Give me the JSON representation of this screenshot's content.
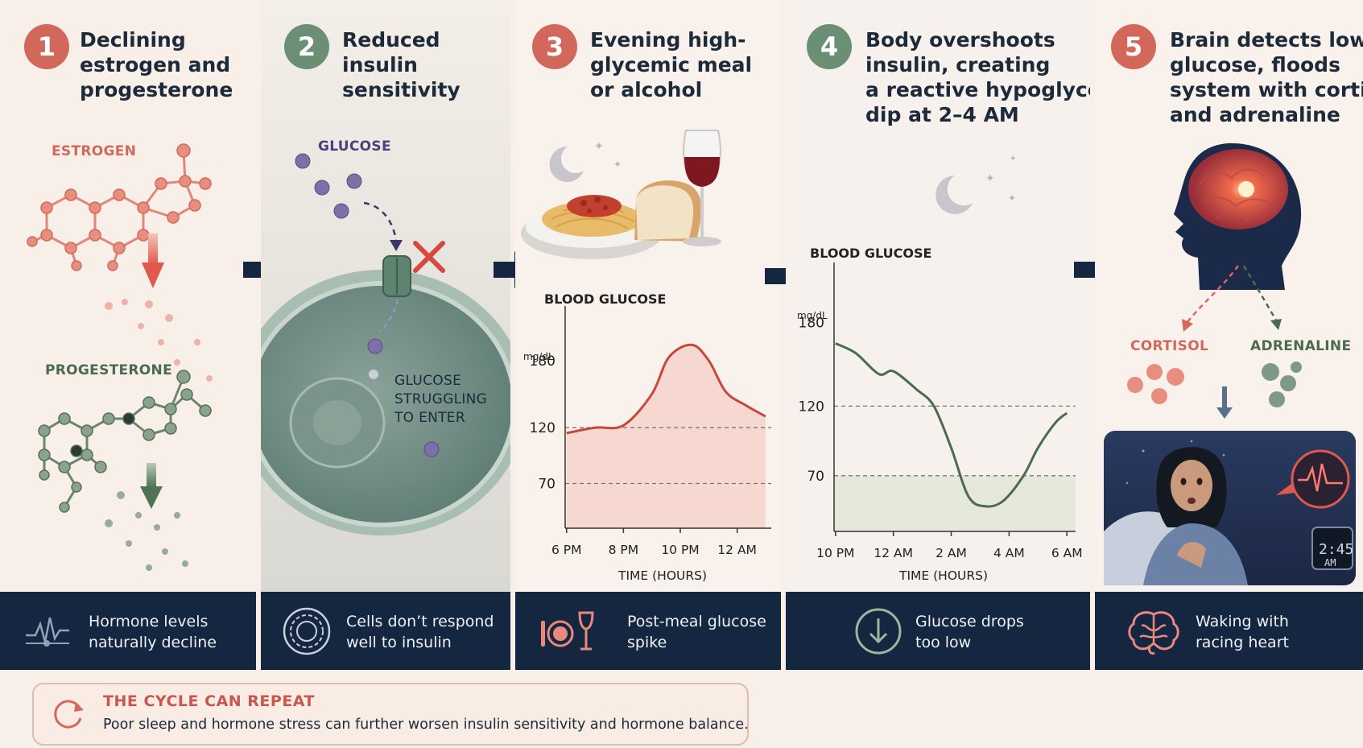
{
  "colors": {
    "navy": "#152641",
    "coral": "#d9665a",
    "sage": "#6b8f74",
    "cream": "#f7efe8"
  },
  "steps": [
    {
      "number": "1",
      "title_lines": [
        "Declining",
        "estrogen and",
        "progesterone"
      ],
      "footer_lines": [
        "Hormone levels",
        "naturally decline"
      ],
      "icon": "pulse-line-icon"
    },
    {
      "number": "2",
      "title_lines": [
        "Reduced",
        "insulin",
        "sensitivity"
      ],
      "footer_lines": [
        "Cells don’t respond",
        "well to insulin"
      ],
      "icon": "cell-rings-icon"
    },
    {
      "number": "3",
      "title_lines": [
        "Evening high-",
        "glycemic meal",
        "or alcohol"
      ],
      "footer_lines": [
        "Post-meal glucose",
        "spike"
      ],
      "icon": "plate-wine-icon"
    },
    {
      "number": "4",
      "title_lines": [
        "Body overshoots",
        "insulin, creating",
        "a reactive hypoglycemia",
        "dip at 2–4 AM"
      ],
      "footer_lines": [
        "Glucose drops",
        "too low"
      ],
      "icon": "down-arrow-circle-icon"
    },
    {
      "number": "5",
      "title_lines": [
        "Brain detects low",
        "glucose, floods",
        "system with cortisol",
        "and adrenaline"
      ],
      "footer_lines": [
        "Waking with",
        "racing heart"
      ],
      "icon": "brain-icon"
    }
  ],
  "labels": {
    "estrogen": "ESTROGEN",
    "progesterone": "PROGESTERONE",
    "glucose": "GLUCOSE",
    "glucose_struggling": [
      "GLUCOSE",
      "STRUGGLING",
      "TO ENTER"
    ],
    "cortisol": "CORTISOL",
    "adrenaline": "ADRENALINE",
    "clock_time": "2:45",
    "clock_ampm": "AM"
  },
  "chart_data": [
    {
      "type": "line",
      "title": "BLOOD GLUCOSE",
      "ylabel_unit": "mg/dL",
      "xlabel": "TIME (HOURS)",
      "x_ticks": [
        "6 PM",
        "8 PM",
        "10 PM",
        "12 AM"
      ],
      "y_ticks": [
        180,
        120,
        70
      ],
      "ylim": [
        30,
        200
      ],
      "reference_lines": [
        120,
        70
      ],
      "series": [
        {
          "x": [
            6,
            7,
            8,
            9,
            9.6,
            10.4,
            11,
            11.6,
            12.3,
            13
          ],
          "values": [
            115,
            120,
            122,
            150,
            183,
            194,
            180,
            152,
            140,
            130
          ]
        }
      ]
    },
    {
      "type": "line",
      "title": "BLOOD GLUCOSE",
      "ylabel_unit": "mg/dL",
      "xlabel": "TIME (HOURS)",
      "x_ticks": [
        "10 PM",
        "12 AM",
        "2 AM",
        "4 AM",
        "6 AM"
      ],
      "y_ticks": [
        180,
        120,
        70
      ],
      "ylim": [
        30,
        200
      ],
      "reference_lines": [
        120,
        70
      ],
      "series": [
        {
          "x": [
            22,
            22.7,
            23.5,
            24,
            24.8,
            25.4,
            26,
            26.6,
            27.2,
            27.8,
            28.5,
            29,
            29.6,
            30
          ],
          "values": [
            165,
            158,
            143,
            145,
            132,
            120,
            90,
            55,
            48,
            52,
            70,
            90,
            108,
            115
          ]
        }
      ]
    }
  ],
  "cycle_note": {
    "title": "THE CYCLE CAN REPEAT",
    "description": "Poor sleep and hormone stress can further worsen insulin sensitivity and hormone balance."
  }
}
